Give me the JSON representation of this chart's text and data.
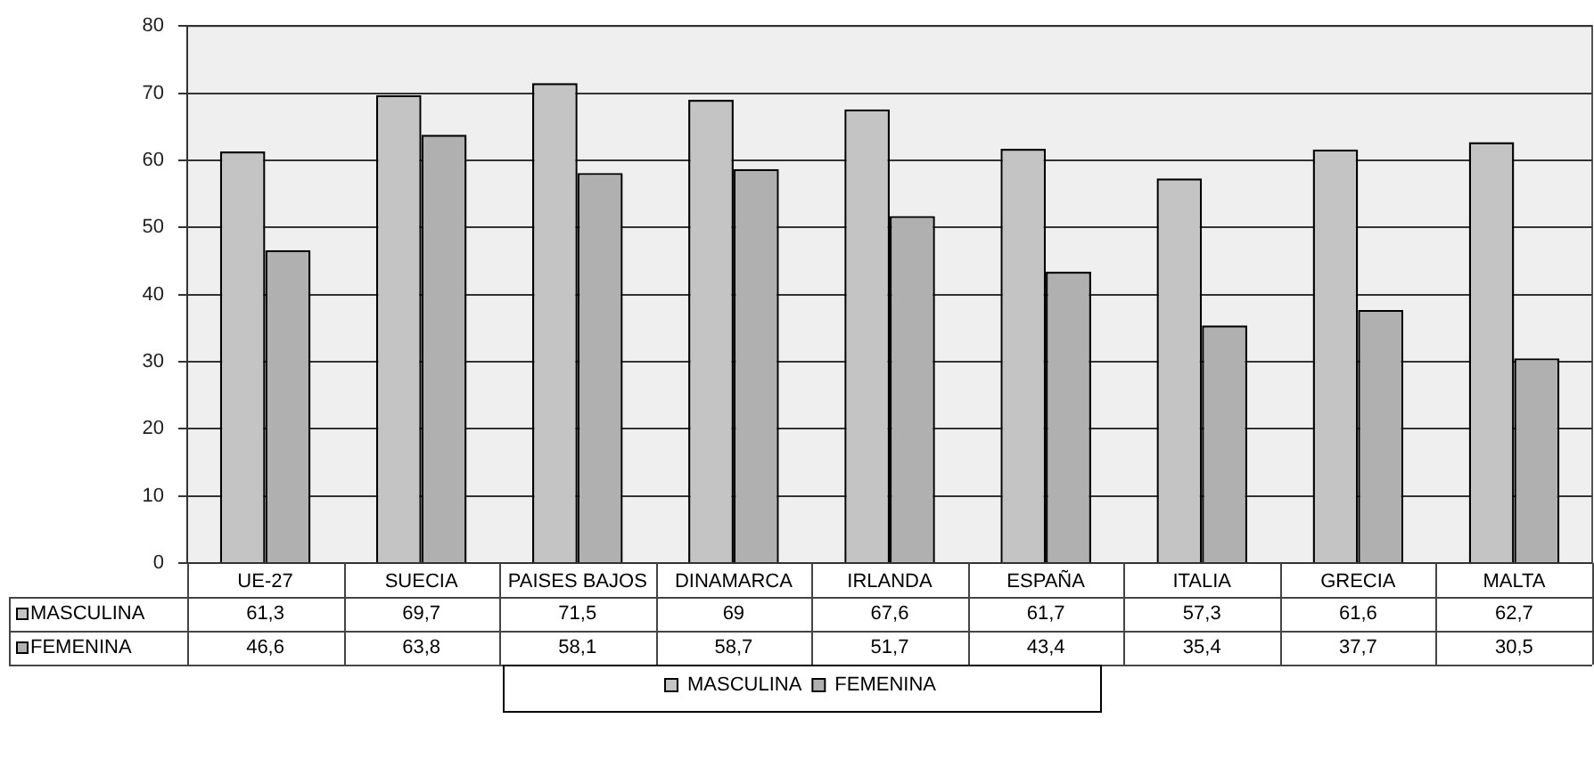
{
  "chart_data": {
    "type": "bar",
    "categories": [
      "UE-27",
      "SUECIA",
      "PAISES BAJOS",
      "DINAMARCA",
      "IRLANDA",
      "ESPAÑA",
      "ITALIA",
      "GRECIA",
      "MALTA"
    ],
    "series": [
      {
        "name": "MASCULINA",
        "color": "#c4c4c4",
        "values": [
          61.3,
          69.7,
          71.5,
          69,
          67.6,
          61.7,
          57.3,
          61.6,
          62.7
        ],
        "value_labels": [
          "61,3",
          "69,7",
          "71,5",
          "69",
          "67,6",
          "61,7",
          "57,3",
          "61,6",
          "62,7"
        ]
      },
      {
        "name": "FEMENINA",
        "color": "#b0b0b0",
        "values": [
          46.6,
          63.8,
          58.1,
          58.7,
          51.7,
          43.4,
          35.4,
          37.7,
          30.5
        ],
        "value_labels": [
          "46,6",
          "63,8",
          "58,1",
          "58,7",
          "51,7",
          "43,4",
          "35,4",
          "37,7",
          "30,5"
        ]
      }
    ],
    "ylim": [
      0,
      80
    ],
    "yticks": [
      0,
      10,
      20,
      30,
      40,
      50,
      60,
      70,
      80
    ],
    "grid": "y",
    "legend": "bottom"
  }
}
